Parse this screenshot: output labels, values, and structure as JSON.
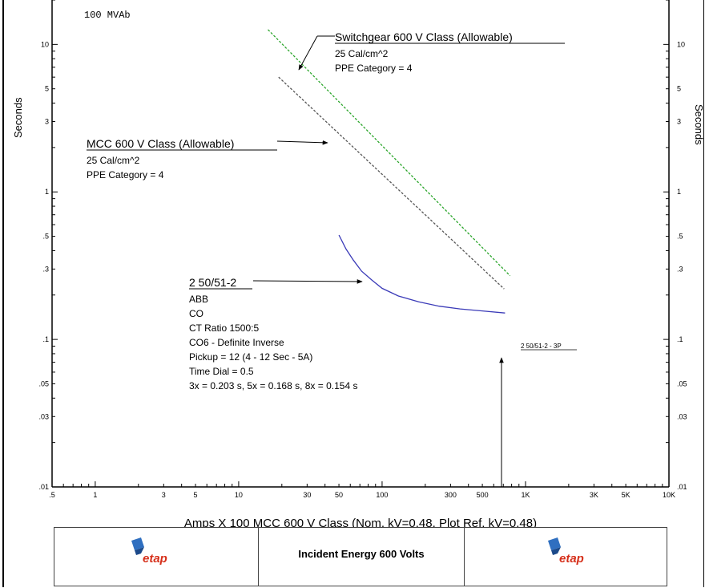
{
  "header_label": "100 MVAb",
  "footer": {
    "title": "Incident Energy 600 Volts",
    "logo_text": "etap"
  },
  "colors": {
    "switchgear": "#2aa52a",
    "mcc": "#555555",
    "relay": "#3b3bb8",
    "arrow": "#000000"
  },
  "chart_data": {
    "type": "line",
    "xscale": "log",
    "yscale": "log",
    "xlim": [
      0.5,
      10000
    ],
    "ylim": [
      0.01,
      20
    ],
    "xlabel": "Amps  X  100   MCC 600 V Class (Nom. kV=0.48, Plot Ref. kV=0.48)",
    "ylabel_left": "Seconds",
    "ylabel_right": "Seconds",
    "x_ticks": [
      {
        "v": 0.5,
        "t": ".5"
      },
      {
        "v": 1,
        "t": "1"
      },
      {
        "v": 3,
        "t": "3"
      },
      {
        "v": 5,
        "t": "5"
      },
      {
        "v": 10,
        "t": "10"
      },
      {
        "v": 30,
        "t": "30"
      },
      {
        "v": 50,
        "t": "50"
      },
      {
        "v": 100,
        "t": "100"
      },
      {
        "v": 300,
        "t": "300"
      },
      {
        "v": 500,
        "t": "500"
      },
      {
        "v": 1000,
        "t": "1K"
      },
      {
        "v": 3000,
        "t": "3K"
      },
      {
        "v": 5000,
        "t": "5K"
      },
      {
        "v": 10000,
        "t": "10K"
      }
    ],
    "y_ticks": [
      {
        "v": 0.01,
        "t": ".01"
      },
      {
        "v": 0.03,
        "t": ".03"
      },
      {
        "v": 0.05,
        "t": ".05"
      },
      {
        "v": 0.1,
        "t": ".1"
      },
      {
        "v": 0.3,
        "t": ".3"
      },
      {
        "v": 0.5,
        "t": ".5"
      },
      {
        "v": 1,
        "t": "1"
      },
      {
        "v": 3,
        "t": "3"
      },
      {
        "v": 5,
        "t": "5"
      },
      {
        "v": 10,
        "t": "10"
      }
    ],
    "series": [
      {
        "name": "Switchgear 600 V Class (Allowable)",
        "style": "dashed",
        "color": "#2aa52a",
        "points": [
          [
            16,
            12.6
          ],
          [
            780,
            0.27
          ]
        ]
      },
      {
        "name": "MCC 600 V Class (Allowable)",
        "style": "dashed",
        "color": "#555555",
        "points": [
          [
            19,
            6.0
          ],
          [
            710,
            0.22
          ]
        ]
      },
      {
        "name": "2 50/51-2",
        "style": "solid",
        "color": "#3b3bb8",
        "points": [
          [
            50,
            0.51
          ],
          [
            56,
            0.41
          ],
          [
            63,
            0.345
          ],
          [
            72,
            0.29
          ],
          [
            85,
            0.252
          ],
          [
            100,
            0.222
          ],
          [
            130,
            0.197
          ],
          [
            180,
            0.18
          ],
          [
            250,
            0.168
          ],
          [
            350,
            0.161
          ],
          [
            500,
            0.156
          ],
          [
            720,
            0.151
          ]
        ]
      }
    ],
    "annotations": [
      {
        "id": "swg",
        "title": "Switchgear 600 V Class (Allowable)",
        "lines": [
          "25 Cal/cm^2",
          "PPE Category = 4"
        ]
      },
      {
        "id": "mcc",
        "title": "MCC 600 V Class (Allowable)",
        "lines": [
          "25 Cal/cm^2",
          "PPE Category = 4"
        ]
      },
      {
        "id": "relay",
        "title": "2 50/51-2",
        "lines": [
          "ABB",
          "CO",
          "CT Ratio 1500:5",
          "CO6 - Definite Inverse",
          "Pickup = 12 (4 - 12  Sec - 5A)",
          "Time Dial = 0.5",
          "3x = 0.203 s, 5x = 0.168 s, 8x = 0.154 s"
        ]
      },
      {
        "id": "fault",
        "title": "2 50/51-2 - 3P",
        "x": 680
      }
    ]
  }
}
